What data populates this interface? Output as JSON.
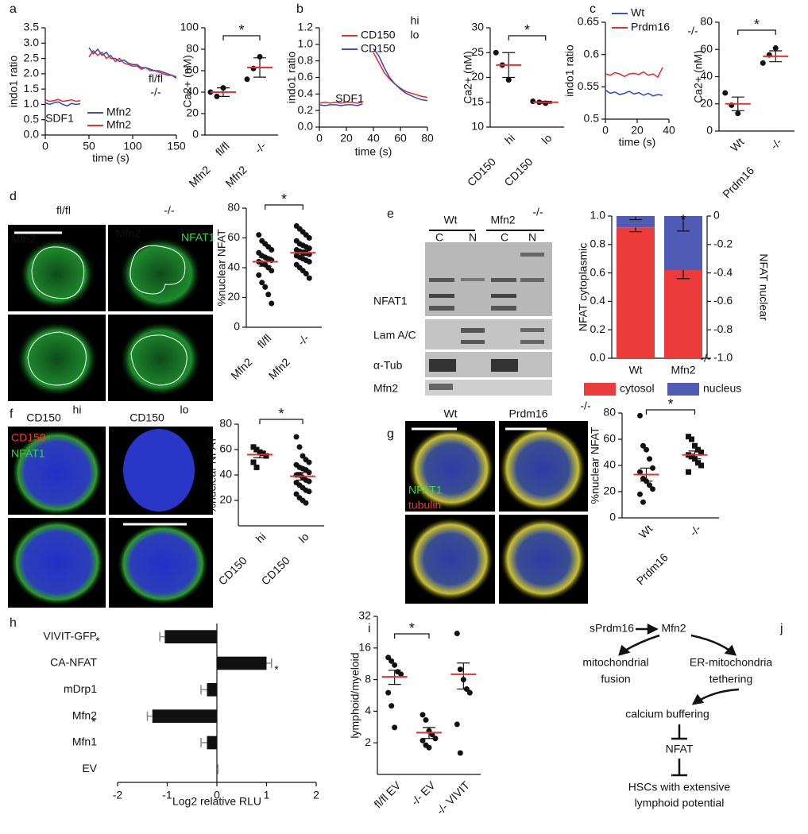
{
  "chart_data": [
    {
      "type": "line",
      "panel": "a",
      "ylabel": "indo1 ratio",
      "xlabel": "time (s)",
      "x": [
        0,
        5,
        10,
        15,
        20,
        25,
        30,
        35,
        40,
        45,
        50,
        55,
        60,
        65,
        70,
        75,
        80,
        85,
        90,
        95,
        100,
        105,
        110,
        115,
        120,
        125,
        130,
        135,
        140,
        145,
        150
      ],
      "xlim": [
        0,
        150
      ],
      "xticks": [
        0,
        50,
        100,
        150
      ],
      "ylim": [
        0,
        3.5
      ],
      "yticks": [
        {
          "value": 0,
          "label": "0.0"
        },
        0.5,
        {
          "value": 1,
          "label": "1.0"
        },
        1.5,
        {
          "value": 2,
          "label": "2.0"
        },
        2.5,
        {
          "value": 3,
          "label": "3.0"
        },
        3.5
      ],
      "series": [
        {
          "name": "Mfn2",
          "color": "#e8312f",
          "values": [
            1.15,
            1.1,
            1.12,
            1.16,
            1.1,
            1.12,
            1.15,
            1.1,
            1.12,
            null,
            2.55,
            2.75,
            2.6,
            2.7,
            2.5,
            2.6,
            2.4,
            2.5,
            2.35,
            2.3,
            2.25,
            2.25,
            2.15,
            2.2,
            2.1,
            2.1,
            2.05,
            2.0,
            1.95,
            1.95,
            1.9
          ]
        },
        {
          "name": "Mfn2",
          "color": "#3b4fbf",
          "values": [
            1.05,
            1.0,
            1.05,
            1.08,
            1.0,
            0.95,
            1.03,
            1.0,
            1.02,
            null,
            2.85,
            2.65,
            2.8,
            2.6,
            2.7,
            2.5,
            2.5,
            2.4,
            2.45,
            2.35,
            2.3,
            2.3,
            2.2,
            2.2,
            2.15,
            2.1,
            2.1,
            2.05,
            2.0,
            1.95,
            1.85
          ]
        }
      ],
      "annotations": [
        "SDF1",
        "fl/fl",
        "-/-"
      ]
    },
    {
      "type": "dot",
      "ylabel": "Ca2+ (nM)",
      "categories": [
        "fl/fl",
        "-/-"
      ],
      "group_label": "Mfn2",
      "ylim": [
        0,
        100
      ],
      "yticks": [
        0,
        20,
        40,
        60,
        80,
        100
      ],
      "values": [
        [
          40,
          36,
          44
        ],
        [
          52,
          62,
          73
        ]
      ],
      "means": [
        40,
        63
      ],
      "errors": [
        4,
        9
      ],
      "markers": [
        "circle",
        "circle"
      ],
      "star": "*"
    },
    {
      "type": "line",
      "panel": "b",
      "ylabel": "indo1 ratio",
      "xlabel": "time (s)",
      "x": [
        0,
        4,
        8,
        12,
        16,
        20,
        24,
        28,
        32,
        36,
        40,
        44,
        48,
        52,
        56,
        60,
        64,
        68,
        72,
        76,
        80
      ],
      "xlim": [
        0,
        80
      ],
      "xticks": [
        0,
        20,
        40,
        60,
        80
      ],
      "ylim": [
        0,
        1.2
      ],
      "yticks": [
        {
          "value": 0,
          "label": "0.0"
        },
        0.2,
        0.4,
        0.6,
        0.8,
        {
          "value": 1,
          "label": "1.0"
        },
        1.2
      ],
      "series": [
        {
          "name": "CD150",
          "color": "#e8312f",
          "values": [
            0.29,
            0.3,
            0.29,
            0.3,
            0.29,
            0.3,
            0.3,
            0.29,
            0.3,
            null,
            0.9,
            0.78,
            0.66,
            0.58,
            0.52,
            0.47,
            0.43,
            0.41,
            0.39,
            0.37,
            0.36
          ]
        },
        {
          "name": "CD150",
          "color": "#3b4fbf",
          "values": [
            0.27,
            0.26,
            0.27,
            0.27,
            0.26,
            0.27,
            0.27,
            0.26,
            0.28,
            null,
            0.95,
            0.86,
            0.72,
            0.6,
            0.52,
            0.46,
            0.41,
            0.38,
            0.35,
            0.33,
            0.32
          ]
        }
      ],
      "annotations": [
        "SDF1",
        "hi",
        "lo"
      ]
    },
    {
      "type": "dot",
      "ylabel": "Ca2+ (nM)",
      "categories": [
        "hi",
        "lo"
      ],
      "group_label": "CD150",
      "ylim": [
        10,
        30
      ],
      "yticks": [
        10,
        15,
        20,
        25,
        30
      ],
      "values": [
        [
          25,
          22.5,
          19.5
        ],
        [
          15.2,
          15,
          14.8
        ]
      ],
      "means": [
        22.5,
        15
      ],
      "errors": [
        2.5,
        0.2
      ],
      "markers": [
        "circle",
        "circle"
      ],
      "star": "*"
    },
    {
      "type": "line",
      "panel": "c",
      "ylabel": "indo1 ratio",
      "xlabel": "time (s)",
      "x": [
        0,
        3,
        6,
        9,
        12,
        15,
        18,
        21,
        24,
        27,
        30,
        33,
        36
      ],
      "xlim": [
        0,
        40
      ],
      "xticks": [
        0,
        20,
        40
      ],
      "ylim": [
        0.5,
        0.65
      ],
      "yticks": [
        0.5,
        0.55,
        0.6,
        0.65
      ],
      "series": [
        {
          "name": "Wt",
          "color": "#3b4fbf",
          "values": [
            0.545,
            0.54,
            0.542,
            0.538,
            0.54,
            0.543,
            0.539,
            0.541,
            0.537,
            0.54,
            0.536,
            0.538,
            0.537
          ]
        },
        {
          "name": "Prdm16",
          "color": "#e8312f",
          "values": [
            0.57,
            0.568,
            0.572,
            0.57,
            0.566,
            0.57,
            0.571,
            0.569,
            0.573,
            0.568,
            0.57,
            0.565,
            0.58
          ]
        }
      ],
      "annotations": [
        "-/-"
      ]
    },
    {
      "type": "dot",
      "ylabel": "Ca2+ (nM)",
      "categories": [
        "Wt",
        "-/-"
      ],
      "group_label": "Prdm16",
      "ylim": [
        0,
        80
      ],
      "yticks": [
        0,
        20,
        40,
        60,
        80
      ],
      "values": [
        [
          28,
          19,
          13
        ],
        [
          50,
          56,
          61
        ]
      ],
      "means": [
        20,
        55
      ],
      "errors": [
        5,
        4
      ],
      "markers": [
        "circle",
        "circle"
      ],
      "star": "*"
    },
    {
      "type": "dot",
      "panel": "d",
      "ylabel": "%nuclear NFAT",
      "categories": [
        "fl/fl",
        "-/-"
      ],
      "group_label": "Mfn2",
      "ylim": [
        0,
        80
      ],
      "yticks": [
        0,
        20,
        40,
        60,
        80
      ],
      "values": [
        [
          62,
          58,
          56,
          54,
          52,
          50,
          48,
          47,
          46,
          45,
          44,
          43,
          42,
          40,
          38,
          35,
          30,
          27,
          22,
          16
        ],
        [
          68,
          66,
          64,
          62,
          60,
          58,
          56,
          55,
          54,
          53,
          52,
          51,
          50,
          50,
          49,
          48,
          47,
          46,
          45,
          44,
          42,
          40,
          38,
          36,
          33
        ]
      ],
      "means": [
        44,
        50
      ],
      "errors": [
        3,
        1.8
      ],
      "markers": [
        "circle",
        "circle"
      ],
      "star": "*"
    },
    {
      "type": "stacked_bar",
      "panel": "e",
      "ylabel": "NFAT cytoplasmic",
      "y2label": "NFAT nuclear",
      "categories": [
        "Wt",
        "Mfn2"
      ],
      "ylim": [
        0,
        1
      ],
      "yticks": [
        {
          "value": 0,
          "label": "0.0"
        },
        0.2,
        0.4,
        0.6,
        0.8,
        {
          "value": 1,
          "label": "1.0"
        }
      ],
      "y2lim": [
        -1,
        0
      ],
      "y2ticks": [
        0,
        -0.2,
        -0.4,
        -0.6,
        -0.8,
        {
          "value": -1,
          "label": "-1.0"
        }
      ],
      "series": [
        {
          "name": "cytosol",
          "color": "#ec3b3b",
          "values": [
            0.92,
            0.62
          ],
          "errors": [
            0.03,
            0.06
          ]
        },
        {
          "name": "nucleus",
          "color": "#4f5bb4",
          "values": [
            0.08,
            0.38
          ],
          "errors": [
            0.02,
            0.1
          ]
        }
      ],
      "annotations": [
        "-/-"
      ],
      "star": "*"
    },
    {
      "type": "dot",
      "panel": "f",
      "ylabel": "%nuclear NFAT",
      "categories": [
        "hi",
        "lo"
      ],
      "group_label": "CD150",
      "ylim": [
        0,
        80
      ],
      "yticks": [
        20,
        40,
        60,
        80
      ],
      "values": [
        [
          62,
          60,
          58,
          57,
          55,
          50,
          46
        ],
        [
          70,
          62,
          55,
          52,
          50,
          48,
          46,
          45,
          44,
          42,
          40,
          40,
          38,
          36,
          35,
          34,
          32,
          30,
          28,
          27,
          25,
          22,
          20,
          18
        ]
      ],
      "means": [
        56,
        39
      ],
      "errors": [
        2.5,
        3
      ],
      "markers": [
        "square",
        "circle"
      ],
      "star": "*"
    },
    {
      "type": "dot",
      "panel": "g",
      "ylabel": "%nuclear NFAT",
      "categories": [
        "Wt",
        "-/-"
      ],
      "group_label": "Prdm16",
      "ylim": [
        0,
        80
      ],
      "yticks": [
        0,
        20,
        40,
        60,
        80
      ],
      "values": [
        [
          78,
          55,
          52,
          45,
          38,
          35,
          30,
          28,
          25,
          22,
          18,
          12
        ],
        [
          62,
          60,
          55,
          52,
          50,
          48,
          47,
          45,
          42,
          40,
          35
        ]
      ],
      "means": [
        33,
        48
      ],
      "errors": [
        5,
        3
      ],
      "markers": [
        "circle",
        "square"
      ],
      "star": "*"
    },
    {
      "type": "hbar",
      "panel": "h",
      "xlabel": "Log2 relative RLU",
      "categories": [
        "VIVIT-GFP",
        "CA-NFAT",
        "mDrp1",
        "Mfn2",
        "Mfn1",
        "EV"
      ],
      "values": [
        -1.05,
        1,
        -0.2,
        -1.3,
        -0.2,
        0
      ],
      "errors": [
        0.1,
        0.1,
        0.12,
        0.1,
        0.12,
        0.02
      ],
      "xlim": [
        -2,
        2
      ],
      "xticks": [
        -2,
        -1,
        0,
        1,
        2
      ],
      "annotations": [
        "*",
        "*",
        "*"
      ]
    },
    {
      "type": "dot",
      "panel": "i",
      "ylabel": "lymphoid/myeloid",
      "categories": [
        "fl/fl EV",
        "-/- EV",
        "-/- VIVIT"
      ],
      "log": true,
      "ylim": [
        1,
        32
      ],
      "yticks": [
        2,
        4,
        8,
        16,
        32
      ],
      "values": [
        [
          13,
          12,
          11,
          9.5,
          9,
          6,
          4.5,
          2.8
        ],
        [
          3.7,
          3.3,
          2.6,
          2.4,
          2.2,
          2.1,
          1.9,
          1.8
        ],
        [
          22,
          10,
          8,
          6.5,
          6,
          3,
          1.6
        ]
      ],
      "means": [
        8.5,
        2.5,
        9
      ],
      "errors": [
        1.3,
        0.3,
        2.5
      ],
      "markers": [
        "circle",
        "circle",
        "circle"
      ],
      "star": "*"
    }
  ],
  "images": {
    "d": {
      "columns": [
        "fl/fl",
        "-/-"
      ],
      "labels": [
        "Mfn2",
        "Mfn2",
        "NFAT1"
      ]
    },
    "e": {
      "groups": [
        "Wt",
        "Mfn2",
        "-/-"
      ],
      "lanes": [
        "C",
        "N",
        "C",
        "N"
      ],
      "rows": [
        "NFAT1",
        "Lam A/C",
        "α-Tub",
        "Mfn2"
      ]
    },
    "f": {
      "columns": [
        "hi",
        "lo"
      ],
      "labels": [
        "CD150",
        "CD150",
        "CD150",
        "NFAT1"
      ]
    },
    "g": {
      "columns": [
        "Wt",
        "Prdm16",
        "-/-"
      ],
      "labels": [
        "NFAT1",
        "tubulin"
      ]
    }
  },
  "diagram": {
    "panel": "j",
    "nodes": [
      {
        "lines": [
          "sPrdm16"
        ]
      },
      {
        "lines": [
          "Mfn2"
        ]
      },
      {
        "lines": [
          "mitochondrial",
          "fusion"
        ]
      },
      {
        "lines": [
          "ER-mitochondria",
          "tethering"
        ]
      },
      {
        "lines": [
          "calcium buffering"
        ]
      },
      {
        "lines": [
          "NFAT"
        ]
      },
      {
        "lines": [
          "HSCs with extensive",
          "lymphoid potential"
        ]
      }
    ]
  }
}
